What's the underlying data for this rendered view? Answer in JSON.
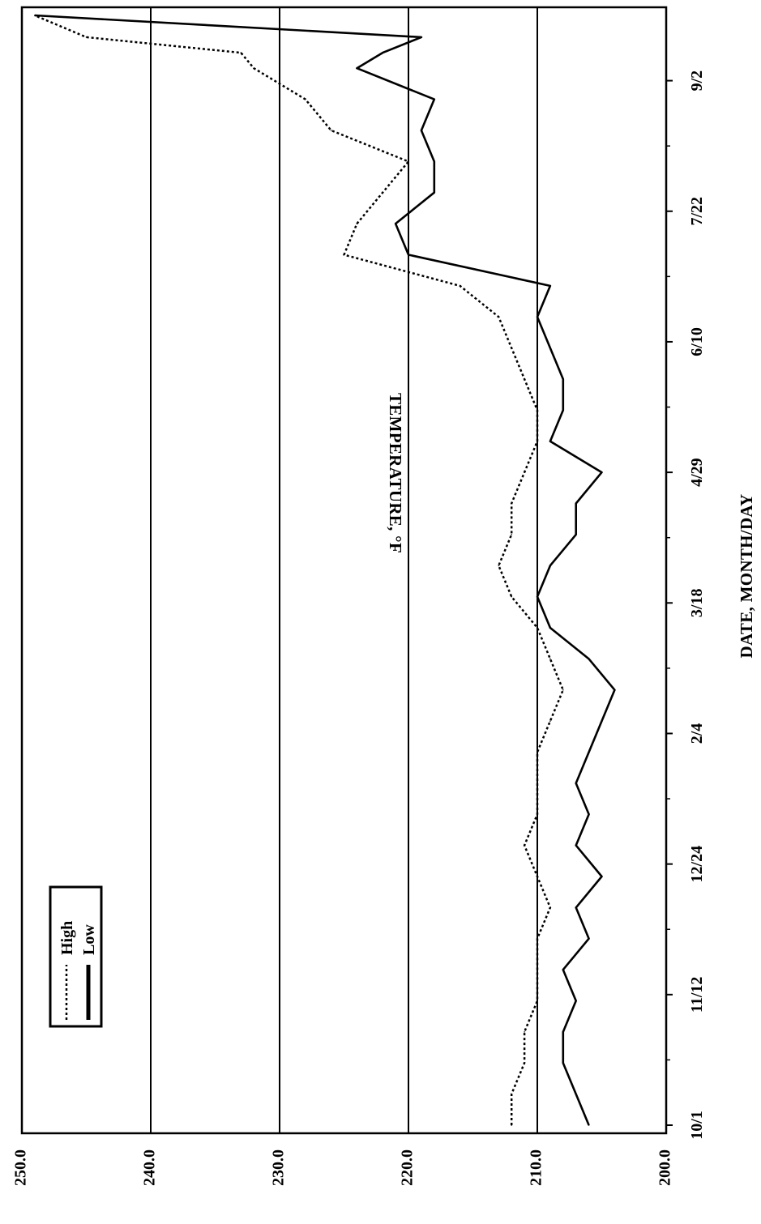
{
  "chart_data": {
    "type": "line",
    "xlabel": "DATE, MONTH/DAY",
    "ylabel": "TEMPERATURE, °F",
    "ylim": [
      200,
      250
    ],
    "y_ticks": [
      "200.0",
      "210.0",
      "220.0",
      "230.0",
      "240.0",
      "250.0"
    ],
    "y_tick_values": [
      200,
      210,
      220,
      230,
      240,
      250
    ],
    "x_tick_labels": [
      "10/1",
      "11/12",
      "12/24",
      "2/4",
      "3/18",
      "4/29",
      "6/10",
      "7/22",
      "9/2"
    ],
    "x_tick_day_index": [
      0,
      42,
      84,
      126,
      168,
      210,
      252,
      294,
      336
    ],
    "x_range_days": [
      0,
      357
    ],
    "grid": {
      "horizontal_lines_at": [
        210,
        220,
        230,
        240
      ]
    },
    "legend": {
      "placement": "top-left",
      "entries": [
        "High",
        "Low"
      ]
    },
    "series": [
      {
        "name": "High",
        "style": "dotted",
        "x": [
          0,
          10,
          20,
          30,
          40,
          50,
          60,
          70,
          80,
          90,
          100,
          110,
          120,
          130,
          140,
          150,
          160,
          170,
          180,
          190,
          200,
          210,
          220,
          230,
          240,
          250,
          260,
          270,
          280,
          290,
          300,
          310,
          320,
          330,
          340,
          345,
          350,
          357
        ],
        "values": [
          212,
          212,
          211,
          211,
          210,
          210,
          210,
          209,
          210,
          211,
          210,
          210,
          210,
          209,
          208,
          209,
          210,
          212,
          213,
          212,
          212,
          211,
          210,
          210,
          211,
          212,
          213,
          216,
          225,
          224,
          222,
          220,
          226,
          228,
          232,
          233,
          245,
          249
        ]
      },
      {
        "name": "Low",
        "style": "solid",
        "x": [
          0,
          10,
          20,
          30,
          40,
          50,
          60,
          70,
          80,
          90,
          100,
          110,
          120,
          130,
          140,
          150,
          160,
          170,
          180,
          190,
          200,
          210,
          220,
          230,
          240,
          250,
          260,
          270,
          280,
          290,
          300,
          310,
          320,
          330,
          340,
          345,
          350,
          357
        ],
        "values": [
          206,
          207,
          208,
          208,
          207,
          208,
          206,
          207,
          205,
          207,
          206,
          207,
          206,
          205,
          204,
          206,
          209,
          210,
          209,
          207,
          207,
          205,
          209,
          208,
          208,
          209,
          210,
          209,
          220,
          221,
          218,
          218,
          219,
          218,
          224,
          222,
          219,
          249
        ]
      }
    ]
  }
}
